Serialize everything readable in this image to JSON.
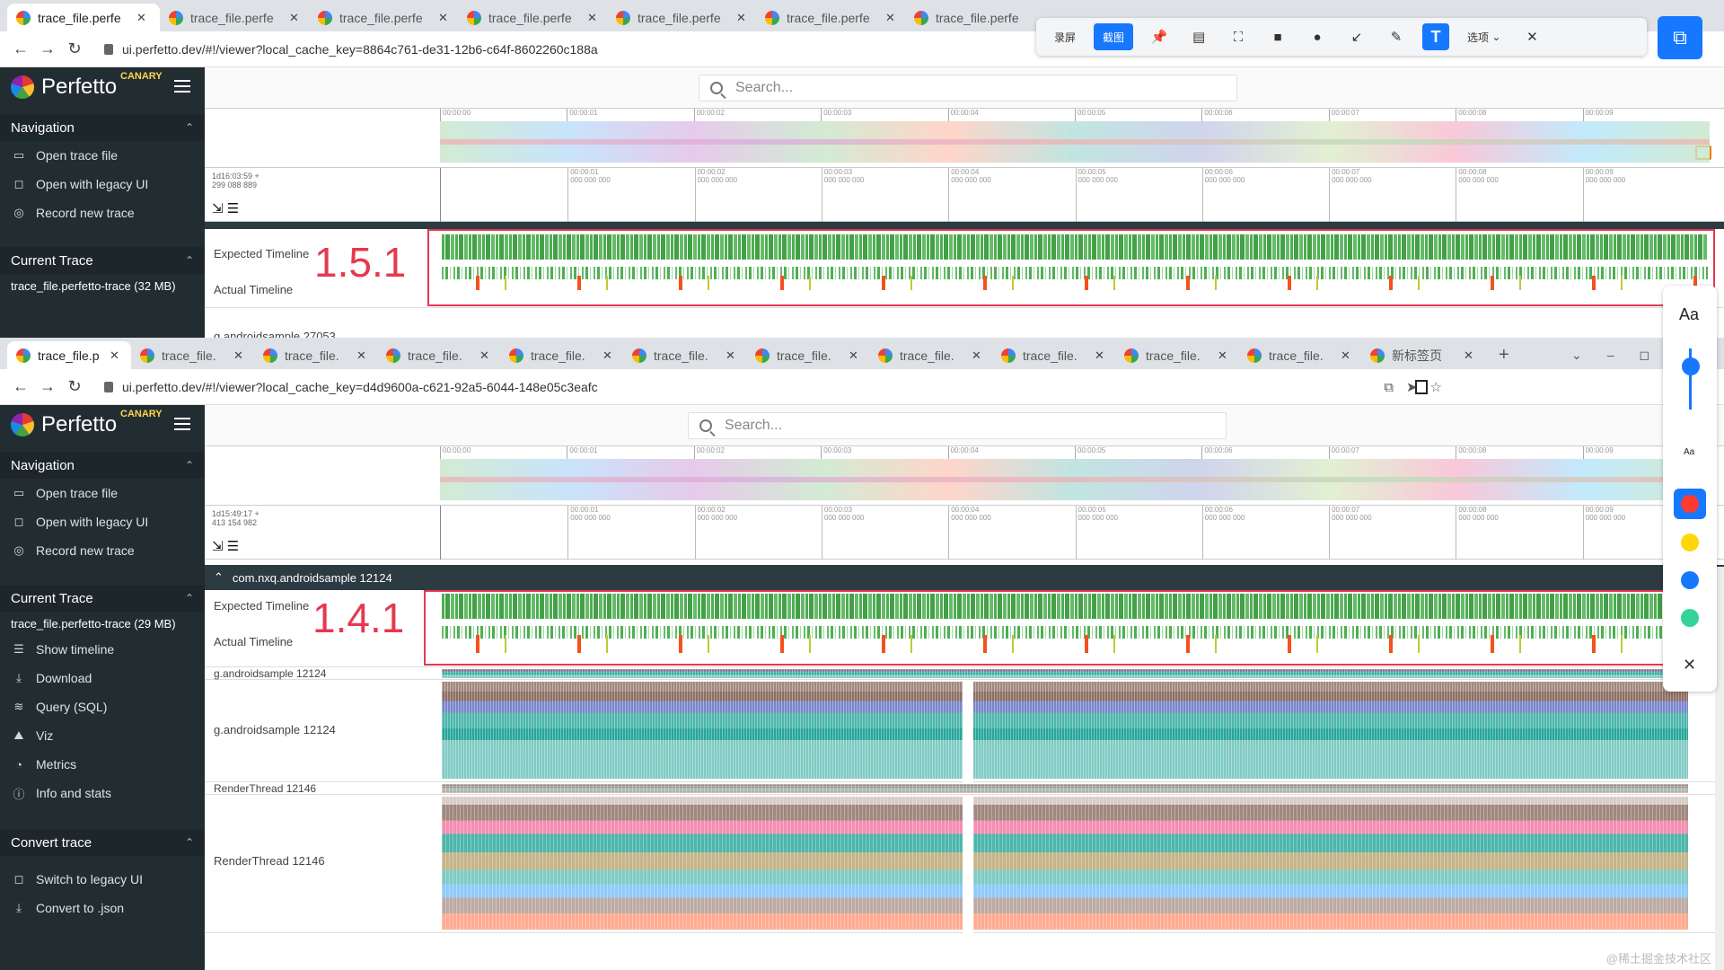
{
  "window1": {
    "tabs": [
      {
        "title": "trace_file.perfe",
        "active": true
      },
      {
        "title": "trace_file.perfe"
      },
      {
        "title": "trace_file.perfe"
      },
      {
        "title": "trace_file.perfe"
      },
      {
        "title": "trace_file.perfe"
      },
      {
        "title": "trace_file.perfe"
      },
      {
        "title": "trace_file.perfe"
      }
    ],
    "url": "ui.perfetto.dev/#!/viewer?local_cache_key=8864c761-de31-12b6-c64f-8602260c188a",
    "timestamp": [
      "1d16:03:59 +",
      "299 088 889"
    ],
    "annotation": "1.5.1",
    "current_trace": "trace_file.perfetto-trace (32 MB)",
    "partial_row": "g.androidsample 27053"
  },
  "window2": {
    "tabs": [
      {
        "title": "trace_file.p",
        "active": true
      },
      {
        "title": "trace_file."
      },
      {
        "title": "trace_file."
      },
      {
        "title": "trace_file."
      },
      {
        "title": "trace_file."
      },
      {
        "title": "trace_file."
      },
      {
        "title": "trace_file."
      },
      {
        "title": "trace_file."
      },
      {
        "title": "trace_file."
      },
      {
        "title": "trace_file."
      },
      {
        "title": "trace_file."
      },
      {
        "title": "新标签页"
      }
    ],
    "url": "ui.perfetto.dev/#!/viewer?local_cache_key=d4d9600a-c621-92a5-6044-148e05c3eafc",
    "timestamp": [
      "1d15:49:17 +",
      "413 154 982"
    ],
    "annotation": "1.4.1",
    "current_trace": "trace_file.perfetto-trace (29 MB)",
    "process": "com.nxq.androidsample 12124",
    "tracks": {
      "main_summary": "g.androidsample 12124",
      "main": "g.androidsample 12124",
      "render_summary": "RenderThread 12146",
      "render": "RenderThread 12146"
    }
  },
  "common": {
    "brand": "Perfetto",
    "canary": "CANARY",
    "search_placeholder": "Search...",
    "nav_title": "Navigation",
    "nav_items": [
      "Open trace file",
      "Open with legacy UI",
      "Record new trace"
    ],
    "current_trace_title": "Current Trace",
    "trace_items": [
      "Show timeline",
      "Download",
      "Query (SQL)",
      "Viz",
      "Metrics",
      "Info and stats"
    ],
    "convert_title": "Convert trace",
    "convert_items": [
      "Switch to legacy UI",
      "Convert to .json"
    ],
    "expected_timeline": "Expected Timeline",
    "actual_timeline": "Actual Timeline",
    "overview_ticks": [
      "00:00:00",
      "00:00:01",
      "00:00:02",
      "00:00:03",
      "00:00:04",
      "00:00:05",
      "00:00:06",
      "00:00:07",
      "00:00:08",
      "00:00:09"
    ],
    "time_ticks": [
      "00:00:01",
      "00:00:02",
      "00:00:03",
      "00:00:04",
      "00:00:05",
      "00:00:06",
      "00:00:07",
      "00:00:08",
      "00:00:09"
    ],
    "tick_sub": "000 000 000"
  },
  "screenshot_toolbar": {
    "record_label": "录屏",
    "capture_label": "截图",
    "options_label": "选项"
  },
  "text_panel": {
    "large": "Aa",
    "small": "Aa"
  },
  "watermark": "@稀土掘金技术社区",
  "colors": {
    "sidebar_bg": "#222d32",
    "annotation_red": "#e53950",
    "accent_blue": "#1677ff",
    "frame_green": "#4caf50",
    "jank_orange": "#f4511e"
  }
}
